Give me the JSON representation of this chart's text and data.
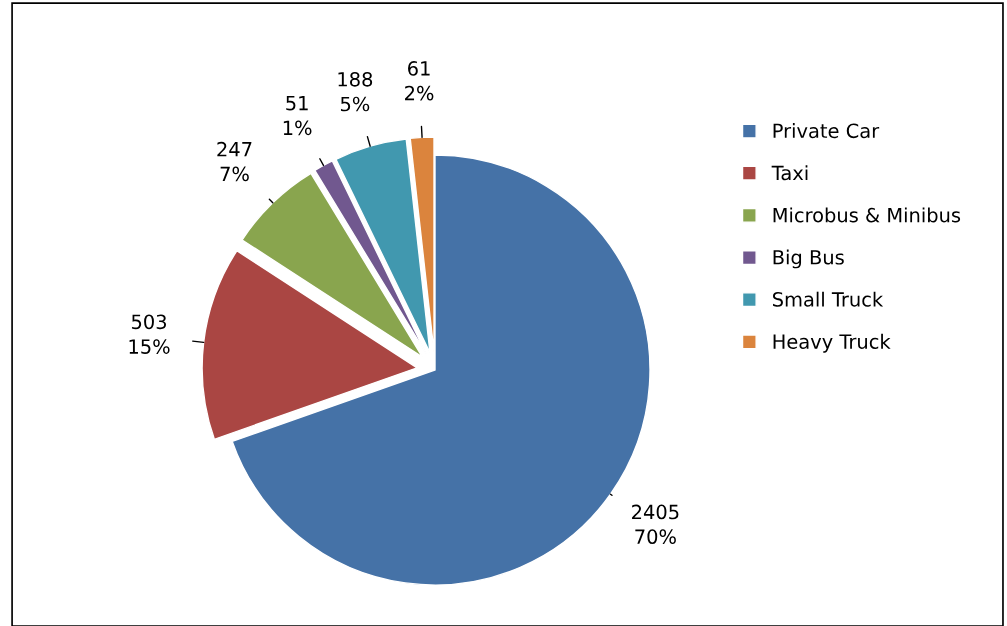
{
  "chart_data": {
    "type": "pie",
    "categories": [
      "Private Car",
      "Taxi",
      "Microbus & Minibus",
      "Big Bus",
      "Small Truck",
      "Heavy Truck"
    ],
    "values": [
      2405,
      503,
      247,
      51,
      188,
      61
    ],
    "colors": [
      "#4572a7",
      "#aa4643",
      "#89a54e",
      "#71588f",
      "#4198af",
      "#db843d"
    ],
    "value_labels": [
      "2405\n70%",
      "503\n15%",
      "247\n7%",
      "51\n1%",
      "188\n5%",
      "61\n2%"
    ],
    "legend": "right"
  }
}
